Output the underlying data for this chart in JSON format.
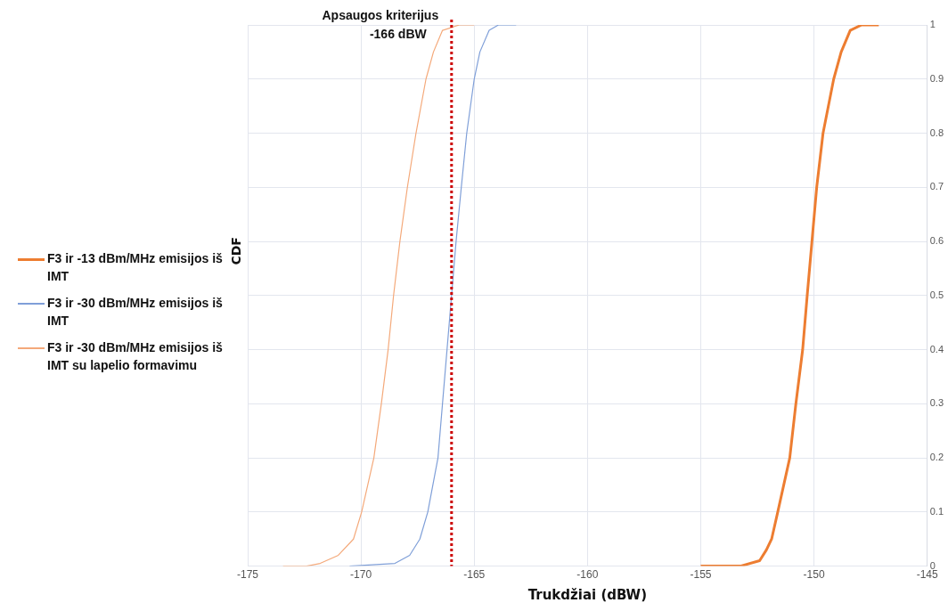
{
  "chart_data": {
    "type": "line",
    "xlabel": "Trukdžiai (dBW)",
    "ylabel": "CDF",
    "xlim": [
      -175,
      -145
    ],
    "xticks": [
      -175,
      -170,
      -165,
      -160,
      -155,
      -150,
      -145
    ],
    "ylim": [
      0,
      1
    ],
    "yticks": [
      0,
      0.1,
      0.2,
      0.3,
      0.4,
      0.5,
      0.6,
      0.7,
      0.8,
      0.9,
      1
    ],
    "grid": true,
    "legend": "left",
    "marker": "none",
    "ref_lines": [
      {
        "axis": "x",
        "value": -166,
        "label": "Apsaugos kriterijus -166 dBW",
        "color": "#cc0000",
        "line_style": "dotted"
      }
    ],
    "series": [
      {
        "name": "F3 ir -13 dBm/MHz emisijos iš IMT",
        "color": "#ed7d31",
        "x": [
          -155,
          -153.25,
          -152.4,
          -152.1,
          -151.87,
          -151.6,
          -151.07,
          -150.8,
          -150.5,
          -150.3,
          -150.09,
          -149.88,
          -149.6,
          -149.13,
          -148.8,
          -148.4,
          -147.9,
          -147.14
        ],
        "values": [
          0,
          0,
          0.01,
          0.03,
          0.05,
          0.1,
          0.2,
          0.3,
          0.4,
          0.5,
          0.6,
          0.7,
          0.8,
          0.9,
          0.95,
          0.99,
          1,
          1
        ]
      },
      {
        "name": "F3 ir -30 dBm/MHz emisijos iš IMT",
        "color": "#7f9fd8",
        "x": [
          -170.5,
          -168.5,
          -167.85,
          -167.4,
          -167.05,
          -166.6,
          -166.4,
          -166.2,
          -166,
          -165.8,
          -165.57,
          -165.33,
          -165,
          -164.75,
          -164.34,
          -163.93,
          -163.15
        ],
        "values": [
          0,
          0.005,
          0.02,
          0.05,
          0.1,
          0.2,
          0.3,
          0.4,
          0.5,
          0.6,
          0.7,
          0.8,
          0.9,
          0.95,
          0.99,
          1,
          1
        ]
      },
      {
        "name": "F3 ir -30 dBm/MHz emisijos iš IMT su lapelio formavimu",
        "color": "#f4a97a",
        "x": [
          -173.44,
          -172.4,
          -171.8,
          -171,
          -170.33,
          -169.97,
          -169.43,
          -169.1,
          -168.8,
          -168.56,
          -168.28,
          -167.95,
          -167.57,
          -167.13,
          -166.8,
          -166.4,
          -165.66,
          -165
        ],
        "values": [
          0,
          0,
          0.005,
          0.02,
          0.05,
          0.1,
          0.2,
          0.3,
          0.4,
          0.5,
          0.6,
          0.7,
          0.8,
          0.9,
          0.95,
          0.99,
          1,
          1
        ]
      }
    ]
  }
}
